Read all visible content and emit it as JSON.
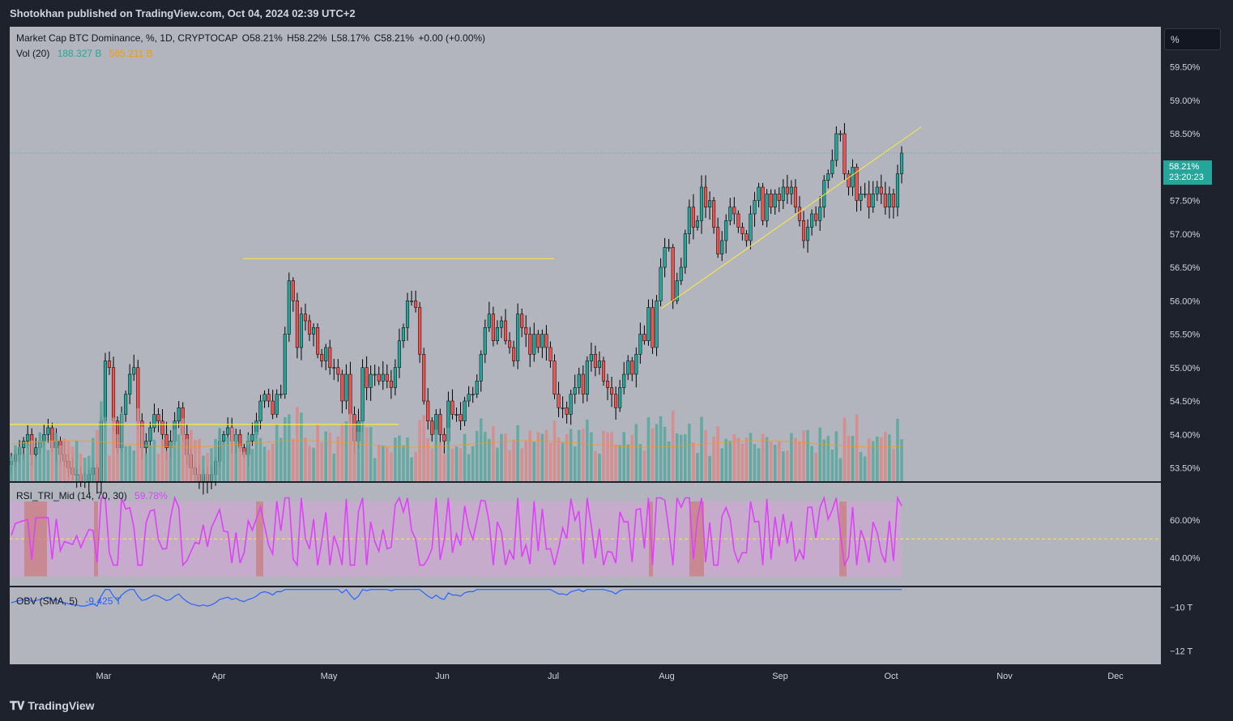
{
  "header": {
    "published": "Shotokhan published on TradingView.com, Oct 04, 2024 02:39 UTC+2"
  },
  "legend": {
    "symbol": "Market Cap BTC Dominance, %, 1D, CRYPTOCAP",
    "open": "O58.21%",
    "high": "H58.22%",
    "low": "L58.17%",
    "close": "C58.21%",
    "change": "+0.00 (+0.00%)",
    "vol_label": "Vol (20)",
    "vol_value": "188.327 B",
    "vol_ma": "565.211 B",
    "rsi_label": "RSI_TRI_Mid (14, 70, 30)",
    "rsi_value": "59.78%",
    "obv_label": "OBV (SMA, 5)",
    "obv_value": "-9.425 T"
  },
  "scale_button": "%",
  "last_price": {
    "price": "58.21%",
    "countdown": "23:20:23"
  },
  "footer": {
    "brand": "TradingView",
    "logo_icon": "tradingview-logo-icon"
  },
  "colors": {
    "up": "#26a69a",
    "down": "#ef5350",
    "rsi": "#e040fb",
    "obv": "#2962ff",
    "trend": "#ffeb3b",
    "pane_bg": "#b2b5be"
  },
  "chart_data": [
    {
      "type": "candlestick",
      "title": "Market Cap BTC Dominance, %, 1D, CRYPTOCAP",
      "x_ticks": [
        "Mar",
        "Apr",
        "May",
        "Jun",
        "Jul",
        "Aug",
        "Sep",
        "Oct",
        "Nov",
        "Dec"
      ],
      "y_ticks": [
        "53.50%",
        "54.00%",
        "54.50%",
        "55.00%",
        "55.50%",
        "56.00%",
        "56.50%",
        "57.00%",
        "57.50%",
        "58.00%",
        "58.50%",
        "59.00%",
        "59.50%"
      ],
      "ylim": [
        53.3,
        60.1
      ],
      "closes": [
        53.6,
        53.7,
        53.8,
        53.9,
        54.0,
        53.7,
        53.8,
        53.9,
        54.0,
        54.1,
        53.8,
        53.9,
        53.7,
        53.6,
        53.5,
        53.4,
        53.4,
        53.3,
        53.3,
        53.4,
        53.5,
        53.3,
        54.2,
        55.1,
        55.0,
        54.2,
        53.8,
        54.3,
        54.6,
        54.9,
        55.0,
        54.2,
        53.8,
        53.9,
        54.1,
        54.3,
        54.2,
        54.0,
        53.8,
        53.9,
        54.2,
        54.4,
        54.0,
        53.7,
        53.5,
        53.4,
        53.3,
        53.4,
        53.3,
        53.4,
        53.6,
        53.9,
        54.0,
        54.1,
        53.9,
        54.0,
        53.8,
        53.7,
        53.9,
        54.0,
        54.2,
        54.5,
        54.6,
        54.5,
        54.3,
        54.6,
        54.6,
        55.5,
        56.3,
        56.0,
        55.3,
        55.8,
        55.7,
        55.5,
        55.6,
        55.2,
        55.1,
        55.3,
        55.0,
        55.0,
        54.9,
        54.5,
        54.9,
        54.3,
        53.9,
        54.2,
        55.0,
        54.7,
        54.9,
        54.9,
        54.8,
        54.9,
        54.8,
        54.7,
        55.0,
        55.4,
        55.6,
        56.0,
        56.0,
        55.9,
        55.2,
        54.5,
        54.2,
        54.0,
        54.3,
        54.0,
        53.9,
        54.5,
        54.3,
        54.3,
        54.2,
        54.5,
        54.6,
        54.6,
        54.8,
        55.2,
        55.6,
        55.8,
        55.4,
        55.6,
        55.7,
        55.4,
        55.3,
        55.1,
        55.8,
        55.6,
        55.5,
        55.2,
        55.5,
        55.3,
        55.5,
        55.3,
        55.1,
        54.6,
        54.4,
        54.4,
        54.3,
        54.6,
        54.7,
        54.9,
        54.6,
        55.1,
        55.2,
        55.0,
        55.1,
        54.8,
        54.7,
        54.6,
        54.4,
        54.7,
        54.9,
        55.1,
        54.9,
        55.2,
        55.5,
        55.4,
        55.9,
        55.3,
        56.0,
        56.5,
        56.8,
        56.8,
        56.0,
        56.3,
        56.5,
        57.0,
        57.4,
        57.1,
        57.2,
        57.7,
        57.4,
        57.5,
        57.1,
        56.7,
        56.9,
        57.2,
        57.4,
        57.3,
        57.1,
        57.0,
        56.9,
        57.3,
        57.5,
        57.7,
        57.2,
        57.6,
        57.4,
        57.6,
        57.5,
        57.7,
        57.6,
        57.7,
        57.4,
        57.2,
        56.9,
        57.1,
        57.3,
        57.2,
        57.4,
        57.8,
        57.9,
        58.1,
        58.5,
        58.5,
        57.9,
        57.7,
        58.0,
        57.5,
        57.6,
        57.6,
        57.4,
        57.6,
        57.7,
        57.6,
        57.4,
        57.6,
        57.4,
        57.9,
        58.21
      ],
      "last": 58.21
    },
    {
      "type": "bar",
      "title": "Vol (20)",
      "note": "volume bars colored by candle direction with 20-period moving average"
    },
    {
      "type": "line",
      "title": "RSI_TRI_Mid (14, 70, 30)",
      "y_ticks": [
        "40.00%",
        "60.00%"
      ],
      "last": 59.78
    },
    {
      "type": "line",
      "title": "OBV (SMA, 5)",
      "y_ticks": [
        "-10 T",
        "-12 T"
      ],
      "last": -9.425
    }
  ]
}
